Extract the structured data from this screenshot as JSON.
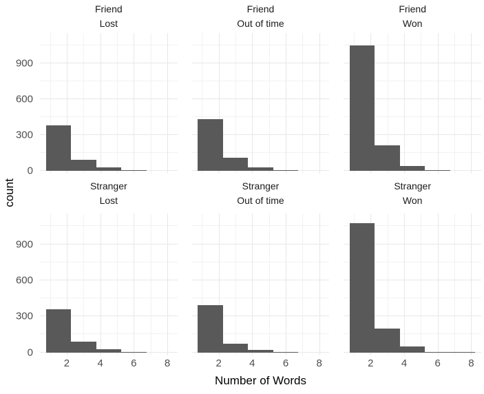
{
  "chart_data": {
    "type": "bar",
    "subtype": "faceted-histogram",
    "xlabel": "Number of Words",
    "ylabel": "count",
    "facet_rows": [
      "Friend",
      "Stranger"
    ],
    "facet_cols": [
      "Lost",
      "Out of time",
      "Won"
    ],
    "bin_start": 0.75,
    "bin_width": 1.5,
    "panels": [
      {
        "strip1": "Friend",
        "strip2": "Lost",
        "counts": [
          380,
          90,
          25,
          3
        ]
      },
      {
        "strip1": "Friend",
        "strip2": "Out of time",
        "counts": [
          430,
          110,
          25,
          3
        ]
      },
      {
        "strip1": "Friend",
        "strip2": "Won",
        "counts": [
          1050,
          210,
          40,
          3
        ]
      },
      {
        "strip1": "Stranger",
        "strip2": "Lost",
        "counts": [
          360,
          90,
          25,
          4
        ]
      },
      {
        "strip1": "Stranger",
        "strip2": "Out of time",
        "counts": [
          395,
          70,
          20,
          4
        ]
      },
      {
        "strip1": "Stranger",
        "strip2": "Won",
        "counts": [
          1075,
          200,
          50,
          5,
          2
        ]
      }
    ],
    "x_ticks": [
      2,
      4,
      6,
      8
    ],
    "y_ticks": [
      0,
      300,
      600,
      900
    ],
    "x_minor": [
      1,
      3,
      5,
      7
    ],
    "y_minor": [
      150,
      450,
      750,
      1050
    ],
    "xlim": [
      0.4,
      8.6
    ],
    "ylim": [
      -25,
      1155
    ],
    "grid": true,
    "legend": "none",
    "bar_color": "#595959",
    "grid_major_color": "#e7e7e7",
    "grid_minor_color": "#f2f2f2"
  }
}
